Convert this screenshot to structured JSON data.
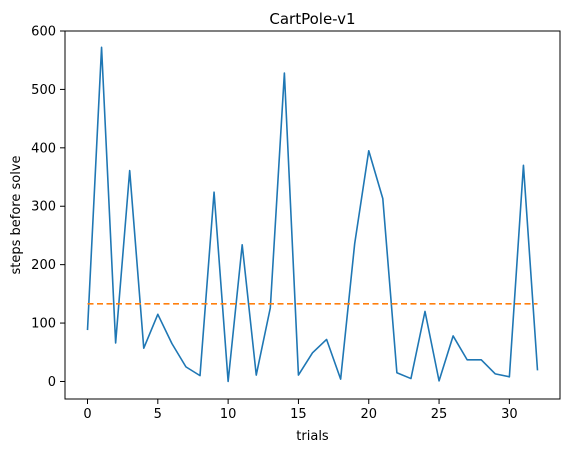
{
  "chart_data": {
    "type": "line",
    "title": "CartPole-v1",
    "xlabel": "trials",
    "ylabel": "steps before solve",
    "xlim": [
      -1.6,
      33.6
    ],
    "ylim": [
      -30,
      600
    ],
    "xticks": [
      0,
      5,
      10,
      15,
      20,
      25,
      30
    ],
    "yticks": [
      0,
      100,
      200,
      300,
      400,
      500,
      600
    ],
    "grid": false,
    "series": [
      {
        "values": [
          88,
          572,
          66,
          361,
          57,
          115,
          65,
          25,
          10,
          324,
          0,
          234,
          11,
          126,
          528,
          11,
          49,
          72,
          4,
          236,
          395,
          313,
          15,
          5,
          120,
          1,
          78,
          37,
          37,
          13,
          8,
          370,
          19
        ],
        "color": "#1f77b4",
        "style": "solid"
      },
      {
        "x": [
          0,
          32
        ],
        "values": [
          133,
          133
        ],
        "color": "#ff7f0e",
        "style": "dashed"
      }
    ]
  }
}
